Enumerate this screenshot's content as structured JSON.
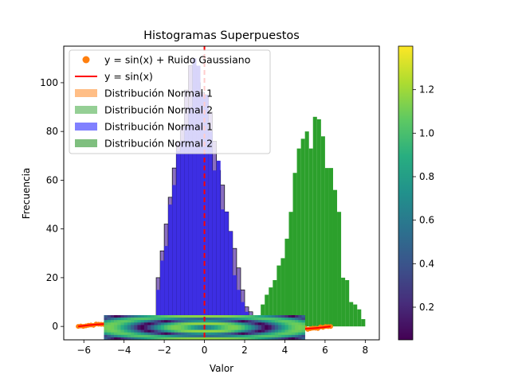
{
  "chart_data": {
    "type": "bar",
    "title": "Histogramas Superpuestos",
    "xlabel": "Valor",
    "ylabel": "Frecuencia",
    "xlim": [
      -7,
      8.7
    ],
    "ylim": [
      -5.5,
      115
    ],
    "xticks": [
      -6,
      -4,
      -2,
      0,
      2,
      4,
      6,
      8
    ],
    "yticks": [
      0,
      20,
      40,
      60,
      80,
      100
    ],
    "grid": false,
    "legend_position": "upper-left",
    "legend": [
      {
        "label": "y = sin(x) + Ruido Gaussiano",
        "kind": "marker",
        "color": "#ff7f0e"
      },
      {
        "label": "y = sin(x)",
        "kind": "line",
        "color": "#ff0000"
      },
      {
        "label": "Distribución Normal 1",
        "kind": "patch",
        "color": "#ffbe86"
      },
      {
        "label": "Distribución Normal 2",
        "kind": "patch",
        "color": "#95cf95"
      },
      {
        "label": "Distribución Normal 1",
        "kind": "patch",
        "color": "#8080ff"
      },
      {
        "label": "Distribución Normal 2",
        "kind": "patch",
        "color": "#7fbf7f"
      }
    ],
    "series": [
      {
        "name": "Distribución Normal 2",
        "type": "histogram",
        "color": "#2ca02c",
        "bin_edges": [
          2.8,
          3.0,
          3.2,
          3.4,
          3.6,
          3.8,
          4.0,
          4.2,
          4.4,
          4.6,
          4.8,
          5.0,
          5.2,
          5.4,
          5.6,
          5.8,
          6.0,
          6.2,
          6.4,
          6.6,
          6.8,
          7.0,
          7.2,
          7.4,
          7.6,
          7.8,
          8.0
        ],
        "counts": [
          9,
          13,
          16,
          19,
          25,
          28,
          36,
          47,
          63,
          73,
          77,
          80,
          73,
          86,
          85,
          78,
          65,
          65,
          56,
          47,
          20,
          19,
          10,
          9,
          7,
          3
        ]
      },
      {
        "name": "Distribución Normal 1",
        "type": "histogram",
        "color": "#8a6fc0",
        "edgecolor": "#000000",
        "bin_edges": [
          -2.4,
          -2.2,
          -2.0,
          -1.8,
          -1.6,
          -1.4,
          -1.2,
          -1.0,
          -0.8,
          -0.6,
          -0.4,
          -0.2,
          0.0,
          0.2,
          0.4,
          0.6,
          0.8,
          1.0,
          1.2,
          1.4,
          1.6,
          1.8,
          2.0,
          2.2,
          2.4
        ],
        "counts": [
          20,
          31,
          42,
          53,
          65,
          76,
          82,
          97,
          107,
          107,
          100,
          96,
          95,
          88,
          76,
          64,
          58,
          47,
          39,
          32,
          24,
          15,
          8,
          6
        ]
      },
      {
        "name": "Distribución Normal 1",
        "type": "histogram",
        "color": "#3d2ee3",
        "bin_edges": [
          -2.4,
          -2.2,
          -2.0,
          -1.8,
          -1.6,
          -1.4,
          -1.2,
          -1.0,
          -0.8,
          -0.6,
          -0.4,
          -0.2,
          0.0,
          0.2,
          0.4,
          0.6,
          0.8,
          1.0,
          1.2,
          1.4,
          1.6,
          1.8,
          2.0,
          2.2,
          2.4
        ],
        "counts": [
          15,
          27,
          33,
          50,
          58,
          72,
          76,
          82,
          90,
          110,
          107,
          95,
          95,
          80,
          64,
          68,
          48,
          47,
          39,
          21,
          15,
          10,
          6,
          4
        ]
      },
      {
        "name": "y = sin(x)",
        "type": "line",
        "color": "#ff0000",
        "x_range": [
          -6.28,
          6.28
        ],
        "function": "sin"
      },
      {
        "name": "y = sin(x) + Ruido Gaussiano",
        "type": "scatter",
        "color": "#ff7f0e",
        "x_range": [
          -6.28,
          6.28
        ]
      }
    ],
    "vline": {
      "x": 0,
      "color": "#ff0000",
      "style": "dashed"
    },
    "heatmap_inset": {
      "x_range": [
        -5,
        5
      ],
      "y_range": [
        -5,
        5
      ],
      "colormap": "viridis"
    },
    "colorbar": {
      "colormap": "viridis",
      "range": [
        0.05,
        1.4
      ],
      "ticks": [
        0.2,
        0.4,
        0.6,
        0.8,
        1.0,
        1.2
      ]
    }
  }
}
